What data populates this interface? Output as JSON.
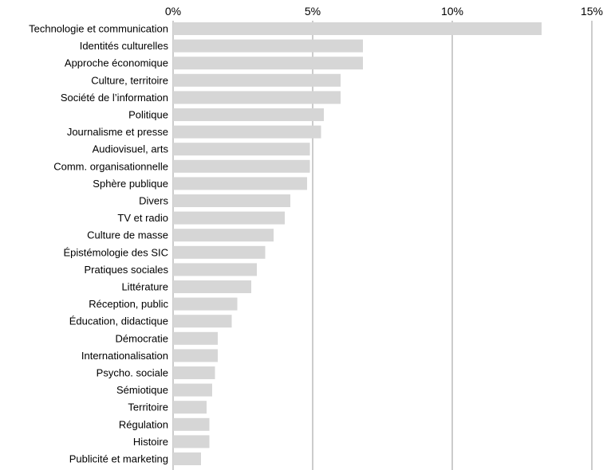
{
  "chart_data": {
    "type": "bar",
    "orientation": "horizontal",
    "title": "",
    "xlabel": "",
    "ylabel": "",
    "xlim": [
      0,
      15
    ],
    "x_ticks": [
      {
        "value": 0,
        "label": "0%"
      },
      {
        "value": 5,
        "label": "5%"
      },
      {
        "value": 10,
        "label": "10%"
      },
      {
        "value": 15,
        "label": "15%"
      }
    ],
    "grid": "vertical gridlines at major ticks",
    "legend": "none",
    "categories": [
      "Technologie et communication",
      "Identités culturelles",
      "Approche économique",
      "Culture, territoire",
      "Société de l’information",
      "Politique",
      "Journalisme et presse",
      "Audiovisuel, arts",
      "Comm. organisationnelle",
      "Sphère publique",
      "Divers",
      "TV et radio",
      "Culture de masse",
      "Épistémologie des SIC",
      "Pratiques sociales",
      "Littérature",
      "Réception, public",
      "Éducation, didactique",
      "Démocratie",
      "Internationalisation",
      "Psycho. sociale",
      "Sémiotique",
      "Territoire",
      "Régulation",
      "Histoire",
      "Publicité et marketing"
    ],
    "values": [
      13.2,
      6.8,
      6.8,
      6.0,
      6.0,
      5.4,
      5.3,
      4.9,
      4.9,
      4.8,
      4.2,
      4.0,
      3.6,
      3.3,
      3.0,
      2.8,
      2.3,
      2.1,
      1.6,
      1.6,
      1.5,
      1.4,
      1.2,
      1.3,
      1.3,
      1.0
    ],
    "colors": {
      "bar": "#d6d6d6",
      "grid": "#9a9a9a",
      "text": "#000000"
    }
  }
}
